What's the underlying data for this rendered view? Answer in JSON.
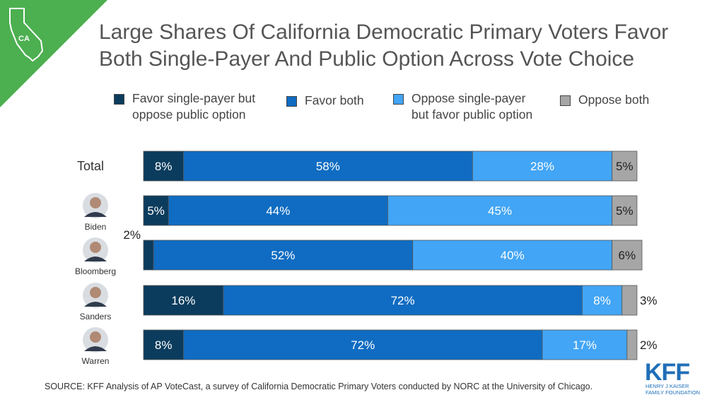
{
  "badge": {
    "state": "CA"
  },
  "title": {
    "line1": "Large Shares Of California Democratic Primary Voters Favor",
    "line2": "Both Single-Payer And Public Option Across Vote Choice"
  },
  "legend": [
    {
      "line1": "Favor single-payer but",
      "line2": "oppose public option",
      "color": "#0B3C5D"
    },
    {
      "line1": "Favor both",
      "line2": "",
      "color": "#0F6CC2"
    },
    {
      "line1": "Oppose single-payer",
      "line2": "but favor public option",
      "color": "#42A5F5"
    },
    {
      "line1": "Oppose both",
      "line2": "",
      "color": "#A6A6A6"
    }
  ],
  "chart_data": {
    "type": "bar",
    "orientation": "horizontal",
    "stacked": true,
    "title": "Large Shares Of California Democratic Primary Voters Favor Both Single-Payer And Public Option Across Vote Choice",
    "categories": [
      "Total",
      "Biden",
      "Bloomberg",
      "Sanders",
      "Warren"
    ],
    "series": [
      {
        "name": "Favor single-payer but oppose public option",
        "color": "#0B3C5D",
        "values": [
          8,
          5,
          2,
          16,
          8
        ]
      },
      {
        "name": "Favor both",
        "color": "#0F6CC2",
        "values": [
          58,
          44,
          52,
          72,
          72
        ]
      },
      {
        "name": "Oppose single-payer but favor public option",
        "color": "#42A5F5",
        "values": [
          28,
          45,
          40,
          8,
          17
        ]
      },
      {
        "name": "Oppose both",
        "color": "#A6A6A6",
        "values": [
          5,
          5,
          6,
          3,
          2
        ]
      }
    ],
    "labels": [
      [
        "8%",
        "58%",
        "28%",
        "5%"
      ],
      [
        "5%",
        "44%",
        "45%",
        "5%"
      ],
      [
        "2%",
        "52%",
        "40%",
        "6%"
      ],
      [
        "16%",
        "72%",
        "8%",
        "3%"
      ],
      [
        "8%",
        "72%",
        "17%",
        "2%"
      ]
    ],
    "xlim": [
      0,
      100
    ],
    "unit": "%"
  },
  "source": "SOURCE: KFF Analysis of AP VoteCast, a survey of California Democratic Primary Voters conducted by NORC at the University of Chicago.",
  "logo": {
    "mark": "KFF",
    "line1": "HENRY J KAISER",
    "line2": "FAMILY FOUNDATION"
  },
  "colors": {
    "corner": "#4CAF50",
    "legend_text": "#444444",
    "logo": "#1F6FB8"
  }
}
